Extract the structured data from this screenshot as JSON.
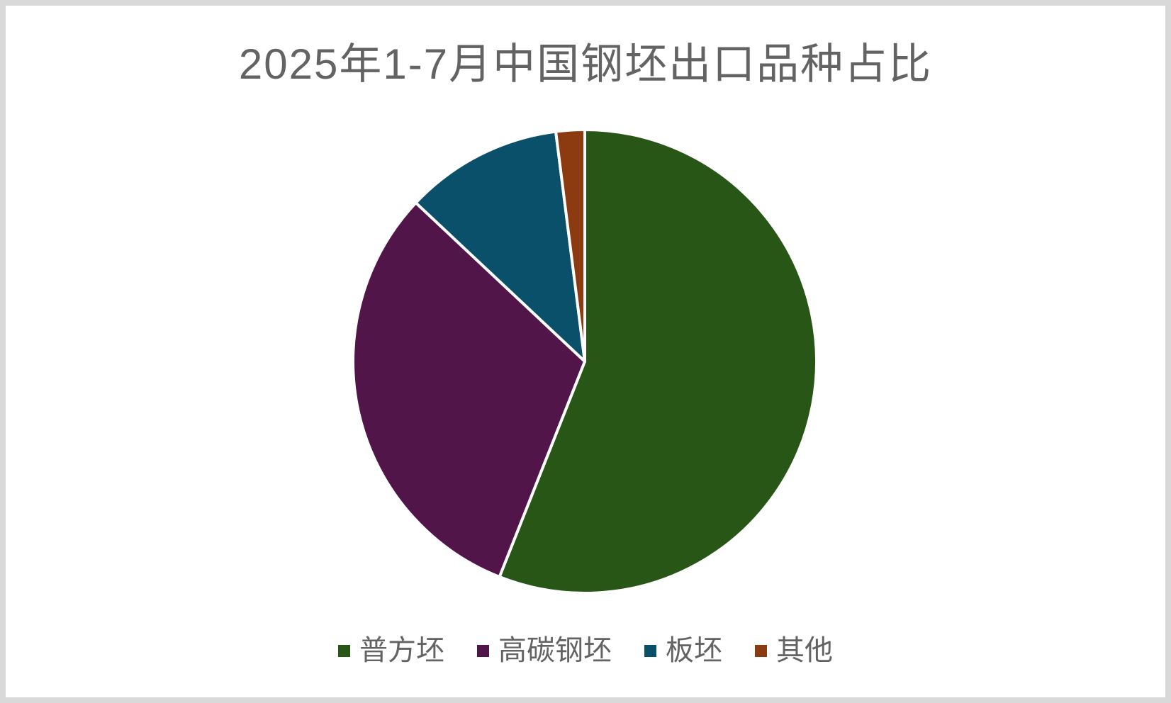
{
  "chart_data": {
    "type": "pie",
    "title": "2025年1-7月中国钢坯出口品种占比",
    "categories": [
      "普方坯",
      "高碳钢坯",
      "板坯",
      "其他"
    ],
    "values": [
      56,
      31,
      11,
      2
    ],
    "values_unit": "percent_estimated_from_slice_angles",
    "colors": [
      "#285616",
      "#52154a",
      "#0a506b",
      "#8c3a10"
    ],
    "slice_keys": [
      "ordinary-square-billet",
      "high-carbon-steel-billet",
      "slab",
      "other"
    ],
    "slice_border_color": "#ffffff",
    "start_angle_deg": 0,
    "direction": "clockwise",
    "legend_position": "bottom",
    "text_color": "#636363",
    "background": "#ffffff",
    "canvas_border_color": "#d9d9d9"
  }
}
